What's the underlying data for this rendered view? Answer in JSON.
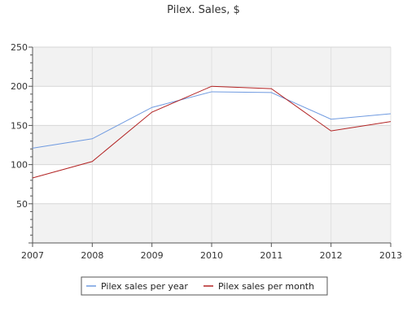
{
  "chart_data": {
    "type": "line",
    "title": "Pilex. Sales, $",
    "xlabel": "",
    "ylabel": "",
    "x": [
      "2007",
      "2008",
      "2009",
      "2010",
      "2011",
      "2012",
      "2013"
    ],
    "xlim": [
      2007,
      2013
    ],
    "ylim": [
      0,
      250
    ],
    "y_ticks": [
      50,
      100,
      150,
      200,
      250
    ],
    "grid": true,
    "band_colors": [
      "#f2f2f2",
      "#ffffff"
    ],
    "legend_position": "bottom-center",
    "series": [
      {
        "name": "Pilex sales per year",
        "color": "#6f9ae0",
        "values": [
          121,
          133,
          173,
          193,
          192,
          158,
          165
        ]
      },
      {
        "name": "Pilex sales per month",
        "color": "#b22222",
        "values": [
          83,
          104,
          167,
          200,
          197,
          143,
          155
        ]
      }
    ]
  }
}
